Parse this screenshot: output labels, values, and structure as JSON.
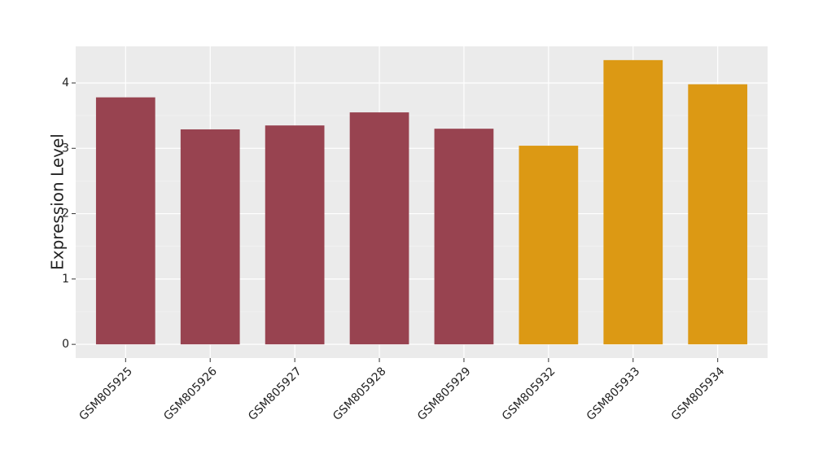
{
  "chart_data": {
    "type": "bar",
    "y_label": "Expression Level",
    "categories": [
      "GSM805925",
      "GSM805926",
      "GSM805927",
      "GSM805928",
      "GSM805929",
      "GSM805932",
      "GSM805933",
      "GSM805934"
    ],
    "values": [
      3.78,
      3.29,
      3.35,
      3.55,
      3.3,
      3.04,
      4.35,
      3.98
    ],
    "colors": [
      "#984350",
      "#984350",
      "#984350",
      "#984350",
      "#984350",
      "#dc9914",
      "#dc9914",
      "#dc9914"
    ],
    "ylim": [
      -0.21,
      4.56
    ],
    "yticks": [
      0,
      1,
      2,
      3,
      4
    ],
    "grid": true
  }
}
